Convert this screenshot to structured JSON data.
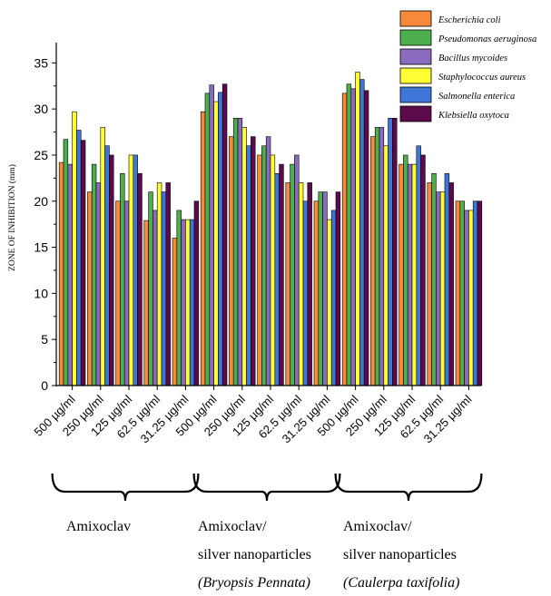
{
  "chart_data": {
    "type": "bar",
    "ylabel": "ZONE OF INHIBITION (mm)",
    "ylim": [
      0,
      37
    ],
    "yticks": [
      0,
      5,
      10,
      15,
      20,
      25,
      30,
      35
    ],
    "grid": false,
    "legend_position": "top-right",
    "categories": [
      "500 µg/ml",
      "250 µg/ml",
      "125 µg/ml",
      "62.5 µg/ml",
      "31.25 µg/ml",
      "500 µg/ml",
      "250 µg/ml",
      "125 µg/ml",
      "62.5 µg/ml",
      "31.25 µg/ml",
      "500 µg/ml",
      "250 µg/ml",
      "125 µg/ml",
      "62.5 µg/ml",
      "31.25 µg/ml"
    ],
    "groups": [
      {
        "label_lines": [
          "Amixoclav"
        ],
        "italic_line": -1,
        "start": 0,
        "end": 4
      },
      {
        "label_lines": [
          "Amixoclav/",
          "silver nanoparticles",
          "(Bryopsis Pennata)"
        ],
        "italic_line": 2,
        "start": 5,
        "end": 9
      },
      {
        "label_lines": [
          "Amixoclav/",
          "silver nanoparticles",
          "(Caulerpa taxifolia)"
        ],
        "italic_line": 2,
        "start": 10,
        "end": 14
      }
    ],
    "series": [
      {
        "name": "Escherichia coli",
        "color": "#f7893b",
        "values": [
          24.2,
          21,
          20,
          17.9,
          16,
          29.7,
          27,
          25,
          22,
          20,
          31.7,
          27,
          24,
          22,
          20
        ]
      },
      {
        "name": "Pseudomonas aeruginosa",
        "color": "#4cae4c",
        "values": [
          26.7,
          24,
          23,
          21,
          19,
          31.7,
          29,
          26,
          24,
          21,
          32.7,
          28,
          25,
          23,
          20
        ]
      },
      {
        "name": "Bacillus mycoides",
        "color": "#8a6bbf",
        "values": [
          24,
          22,
          20,
          19,
          18,
          32.6,
          29,
          27,
          25,
          21,
          32.2,
          28,
          24,
          21,
          19
        ]
      },
      {
        "name": "Staphylococcus aureus",
        "color": "#ffff33",
        "values": [
          29.7,
          28,
          25,
          22,
          18,
          30.8,
          28,
          25,
          22,
          18,
          34,
          26,
          24,
          21,
          19
        ]
      },
      {
        "name": "Salmonella enterica",
        "color": "#3f77d8",
        "values": [
          27.7,
          26,
          25,
          21,
          18,
          31.8,
          26,
          23,
          20,
          19,
          33.2,
          29,
          26,
          23,
          20
        ]
      },
      {
        "name": "Klebsiella oxytoca",
        "color": "#5c0a4a",
        "values": [
          26.6,
          25,
          23,
          22,
          20,
          32.7,
          27,
          24,
          22,
          21,
          32,
          29,
          25,
          22,
          20
        ]
      }
    ]
  }
}
